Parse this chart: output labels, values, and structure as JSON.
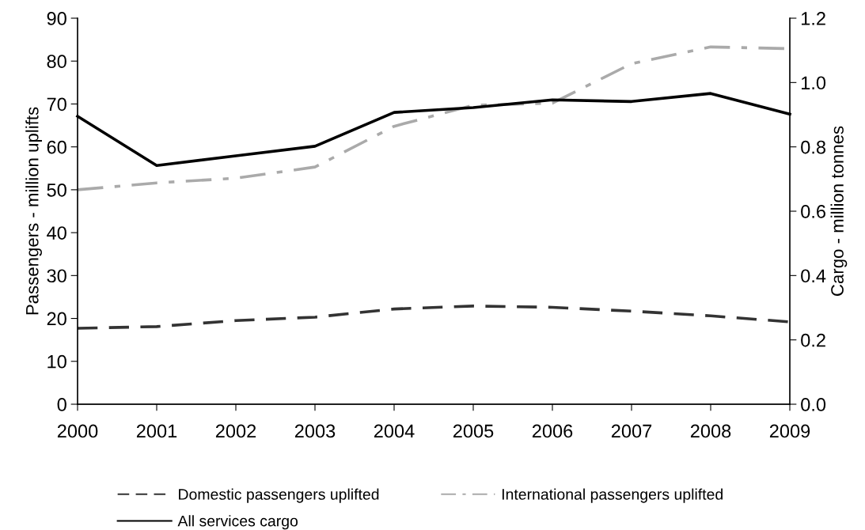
{
  "chart_data": {
    "type": "line",
    "ylabel": "Passengers - million uplifts",
    "y2label": "Cargo - million tonnes",
    "x": [
      2000,
      2001,
      2002,
      2003,
      2004,
      2005,
      2006,
      2007,
      2008,
      2009
    ],
    "xlim": [
      2000,
      2009
    ],
    "xticks": [
      2000,
      2001,
      2002,
      2003,
      2004,
      2005,
      2006,
      2007,
      2008,
      2009
    ],
    "ylim": [
      0,
      90
    ],
    "yticks": [
      0,
      10,
      20,
      30,
      40,
      50,
      60,
      70,
      80,
      90
    ],
    "y2lim": [
      0,
      1.2
    ],
    "y2ticks": [
      {
        "value": 0,
        "label": "0.0"
      },
      {
        "value": 0.2,
        "label": "0.2"
      },
      {
        "value": 0.4,
        "label": "0.4"
      },
      {
        "value": 0.6,
        "label": "0.6"
      },
      {
        "value": 0.8,
        "label": "0.8"
      },
      {
        "value": 1.0,
        "label": "1.0"
      },
      {
        "value": 1.2,
        "label": "1.2"
      }
    ],
    "grid": false,
    "legend": "bottom",
    "marker": "none",
    "series": [
      {
        "name": "Domestic passengers uplifted",
        "color": "#333333",
        "line_style": "dashed",
        "values": [
          17.7,
          18.1,
          19.5,
          20.3,
          22.2,
          22.9,
          22.6,
          21.7,
          20.6,
          19.2
        ]
      },
      {
        "name": "International passengers uplifted",
        "color": "#aaaaaa",
        "line_style": "dashdot",
        "values": [
          50.0,
          51.6,
          52.7,
          55.3,
          64.8,
          69.7,
          70.2,
          79.4,
          83.3,
          82.9
        ]
      },
      {
        "name": "All services cargo",
        "color": "#000000",
        "line_style": "solid",
        "axis": "y2",
        "values": [
          0.895,
          0.742,
          0.772,
          0.802,
          0.907,
          0.922,
          0.946,
          0.941,
          0.966,
          0.902
        ]
      }
    ]
  }
}
